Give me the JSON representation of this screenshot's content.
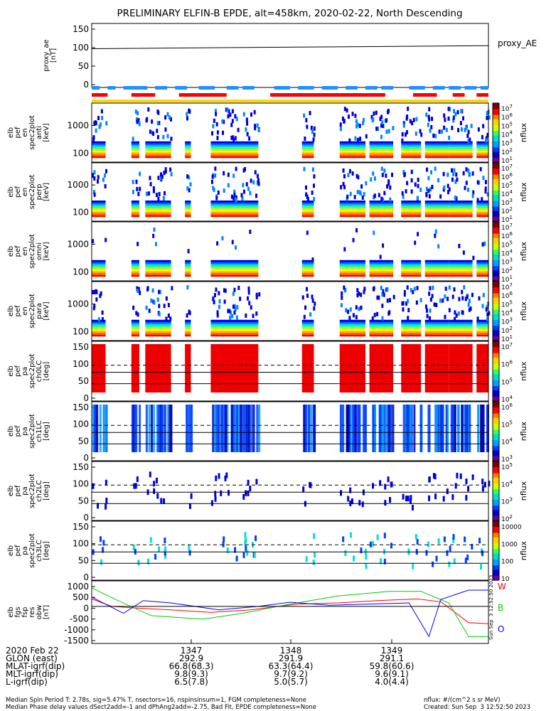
{
  "title": "PRELIMINARY ELFIN-B EPDE, alt=458km, 2020-02-22, North Descending",
  "chart_data": {
    "type": "heatmap",
    "panels": [
      {
        "id": "proxy_ae",
        "kind": "line",
        "ylabel": [
          "proxy_ae",
          "[nT]"
        ],
        "yticks": [
          "150",
          "100",
          "50",
          "0"
        ],
        "ylim": [
          -10,
          160
        ],
        "legend": "proxy_AE",
        "series": [
          {
            "x": [
              0,
              1
            ],
            "y": [
              93,
              101
            ],
            "color": "#000000"
          }
        ]
      },
      {
        "id": "pef_en_spec2plot_anti",
        "kind": "spectrogram",
        "ylabel": [
          "elb",
          "pef",
          "en",
          "spec2plot",
          "anti",
          "[keV]"
        ],
        "yticks": [
          "1000",
          "100"
        ],
        "colorbar": {
          "label": "nflux",
          "ticks": [
            "10^7",
            "10^6",
            "10^5",
            "10^4",
            "10^3",
            "10^2",
            "10^1"
          ]
        }
      },
      {
        "id": "pef_en_spec2plot_perp",
        "kind": "spectrogram",
        "ylabel": [
          "elb",
          "pef",
          "en",
          "spec2plot",
          "perp",
          "[keV]"
        ],
        "yticks": [
          "1000",
          "100"
        ],
        "colorbar": {
          "label": "nflux",
          "ticks": [
            "10^7",
            "10^6",
            "10^5",
            "10^4",
            "10^3",
            "10^2",
            "10^1"
          ]
        }
      },
      {
        "id": "pef_en_spec2plot_omni",
        "kind": "spectrogram",
        "ylabel": [
          "elb",
          "pef",
          "en",
          "spec2plot",
          "omni",
          "[keV]"
        ],
        "yticks": [
          "1000",
          "100"
        ],
        "colorbar": {
          "label": "nflux",
          "ticks": [
            "10^7",
            "10^6",
            "10^5",
            "10^4",
            "10^3",
            "10^2",
            "10^1"
          ]
        }
      },
      {
        "id": "pef_en_spec2plot_para",
        "kind": "spectrogram",
        "ylabel": [
          "elb",
          "pef",
          "en",
          "spec2plot",
          "para",
          "[keV]"
        ],
        "yticks": [
          "1000",
          "100"
        ],
        "colorbar": {
          "label": "nflux",
          "ticks": [
            "10^7",
            "10^6",
            "10^5",
            "10^4",
            "10^3",
            "10^2",
            "10^1"
          ]
        }
      },
      {
        "id": "pef_pa_spec2plot_ch0LC",
        "kind": "pitch",
        "ylabel": [
          "elb",
          "pef",
          "pa",
          "spec2plot",
          "ch0LC",
          "[deg]"
        ],
        "yticks": [
          "150",
          "100",
          "50",
          "0"
        ],
        "colorbar": {
          "label": "nflux",
          "ticks": [
            "10^7",
            "10^6",
            "10^5",
            "10^4"
          ]
        }
      },
      {
        "id": "pef_pa_spec2plot_ch1LC",
        "kind": "pitch",
        "ylabel": [
          "elb",
          "pef",
          "pa",
          "spec2plot",
          "ch1LC",
          "[deg]"
        ],
        "yticks": [
          "150",
          "100",
          "50",
          "0"
        ],
        "colorbar": {
          "label": "nflux",
          "ticks": [
            "10^6",
            "10^5",
            "10^4",
            "10^3"
          ]
        }
      },
      {
        "id": "pef_pa_spec2plot_ch2LC",
        "kind": "pitch",
        "ylabel": [
          "elb",
          "pef",
          "pa",
          "spec2plot",
          "ch2LC",
          "[deg]"
        ],
        "yticks": [
          "150",
          "100",
          "50",
          "0"
        ],
        "colorbar": {
          "label": "nflux",
          "ticks": [
            "10^5",
            "10^4",
            "10^3",
            "10^2"
          ]
        }
      },
      {
        "id": "pef_pa_spec2plot_ch3LC",
        "kind": "pitch",
        "ylabel": [
          "elb",
          "pef",
          "pa",
          "spec2plot",
          "ch3LC",
          "[deg]"
        ],
        "yticks": [
          "150",
          "100",
          "50",
          "0"
        ],
        "colorbar": {
          "label": "nflux",
          "ticks": [
            "10000",
            "1000",
            "100",
            "10"
          ]
        }
      },
      {
        "id": "fgs_fsp_res_obw",
        "kind": "line",
        "ylabel": [
          "elb",
          "fgs",
          "fsp",
          "res",
          "obw",
          "[nT]"
        ],
        "yticks": [
          "1000",
          "500",
          "0",
          "-500",
          "-1000",
          "-1500"
        ],
        "ylim": [
          -1600,
          1100
        ],
        "legend_labels": [
          "W",
          "B",
          "O"
        ],
        "series": [
          {
            "name": "W",
            "color": "#ff0000",
            "x": [
              0,
              0.05,
              0.12,
              0.2,
              0.3,
              0.4,
              0.52,
              0.62,
              0.72,
              0.82,
              0.88,
              0.95,
              1.0
            ],
            "y": [
              320,
              0,
              -80,
              -150,
              -260,
              -150,
              100,
              150,
              250,
              320,
              200,
              -700,
              -750
            ]
          },
          {
            "name": "B",
            "color": "#00cc00",
            "x": [
              0,
              0.06,
              0.15,
              0.28,
              0.38,
              0.5,
              0.62,
              0.75,
              0.83,
              0.9,
              0.95,
              1.0
            ],
            "y": [
              800,
              300,
              -400,
              -550,
              -300,
              100,
              450,
              650,
              650,
              150,
              -1300,
              -1300
            ]
          },
          {
            "name": "O",
            "color": "#0000ff",
            "x": [
              0,
              0.08,
              0.13,
              0.2,
              0.32,
              0.42,
              0.5,
              0.6,
              0.7,
              0.8,
              0.85,
              0.88,
              0.95,
              1.0
            ],
            "y": [
              400,
              -300,
              250,
              150,
              -150,
              0,
              180,
              50,
              100,
              150,
              -1300,
              300,
              700,
              700
            ]
          }
        ]
      }
    ],
    "x_ticks": [
      "1347",
      "1348",
      "1349"
    ]
  },
  "footer": {
    "rows": [
      {
        "label": "2020 Feb 22",
        "values": [
          "1347",
          "1348",
          "1349"
        ]
      },
      {
        "label": "GLON (east)",
        "values": [
          "292.9",
          "291.9",
          "291.1"
        ]
      },
      {
        "label": "MLAT-igrf(dip)",
        "values": [
          "66.8(68.3)",
          "63.3(64.4)",
          "59.8(60.6)"
        ]
      },
      {
        "label": "MLT-igrf(dip)",
        "values": [
          "9.8(9.3)",
          "9.7(9.2)",
          "9.6(9.1)"
        ]
      },
      {
        "label": "L-igrf(dip)",
        "values": [
          "6.5(7.8)",
          "5.0(5.7)",
          "4.0(4.4)"
        ]
      }
    ],
    "note1": "Median Spin Period T: 2.78s, sig=5.47% T, nsectors=16, nspinsinsum=1, FGM completeness=None",
    "note2": "Median Phase delay values dSect2add=-1 and dPhAng2add=-2.75, Bad Fit, EPDE completeness=None",
    "units": "nflux: #/(cm^2 s sr MeV)",
    "created": "Created: Sun Sep  3 12:52:50 2023",
    "side_stamp": "Sun Sep  3 12:52:50 2023"
  },
  "colors": {
    "bar_blue": "#1e90ff",
    "bar_red": "#ff0000",
    "bar_yellow": "#ffd700"
  }
}
